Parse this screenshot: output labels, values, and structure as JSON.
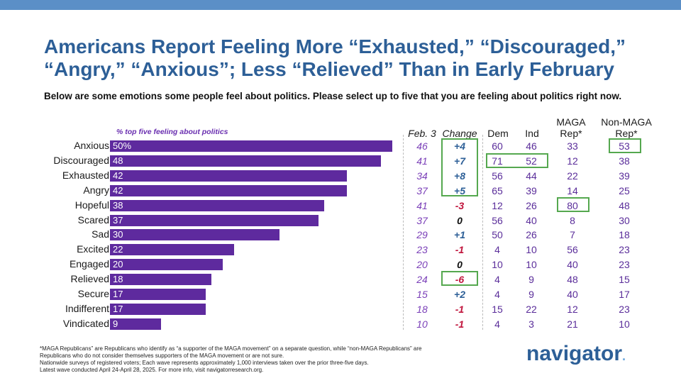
{
  "colors": {
    "top_bar": "#5b8fc7",
    "title": "#2d5f97",
    "bar": "#5e2a9e",
    "feb": "#7a3fb8",
    "change_pos": "#2d5f97",
    "change_neg": "#c0143c",
    "change_zero": "#111111",
    "highlight": "#55a84f"
  },
  "title_line1": "Americans Report Feeling More “Exhausted,” “Discouraged,”",
  "title_line2": "“Angry,” “Anxious”; Less “Relieved” Than in Early February",
  "subtitle": "Below are some emotions some people feel about politics. Please select up to five that you are feeling about politics right now.",
  "columns": {
    "feb": "Feb. 3",
    "change": "Change",
    "dem": "Dem",
    "ind": "Ind",
    "maga_1": "MAGA",
    "maga_2": "Rep*",
    "non_1": "Non-MAGA",
    "non_2": "Rep*"
  },
  "chart_data": {
    "type": "bar",
    "orientation": "horizontal",
    "title": "% top five feeling about politics",
    "categories": [
      "Anxious",
      "Discouraged",
      "Exhausted",
      "Angry",
      "Hopeful",
      "Scared",
      "Sad",
      "Excited",
      "Engaged",
      "Relieved",
      "Secure",
      "Indifferent",
      "Vindicated"
    ],
    "values": [
      50,
      48,
      42,
      42,
      38,
      37,
      30,
      22,
      20,
      18,
      17,
      17,
      9
    ],
    "value_labels": [
      "50%",
      "48",
      "42",
      "42",
      "38",
      "37",
      "30",
      "22",
      "20",
      "18",
      "17",
      "17",
      "9"
    ],
    "xlim": [
      0,
      55
    ],
    "grid": false
  },
  "table": {
    "feb": [
      "46",
      "41",
      "34",
      "37",
      "41",
      "37",
      "29",
      "23",
      "20",
      "24",
      "15",
      "18",
      "10"
    ],
    "change": [
      "+4",
      "+7",
      "+8",
      "+5",
      "-3",
      "0",
      "+1",
      "-1",
      "0",
      "-6",
      "+2",
      "-1",
      "-1"
    ],
    "dem": [
      "60",
      "71",
      "56",
      "65",
      "12",
      "56",
      "50",
      "4",
      "10",
      "4",
      "4",
      "15",
      "4"
    ],
    "ind": [
      "46",
      "52",
      "44",
      "39",
      "26",
      "40",
      "26",
      "10",
      "10",
      "9",
      "9",
      "22",
      "3"
    ],
    "maga": [
      "33",
      "12",
      "22",
      "14",
      "80",
      "8",
      "7",
      "56",
      "40",
      "48",
      "40",
      "12",
      "21"
    ],
    "non_maga": [
      "53",
      "38",
      "39",
      "25",
      "48",
      "30",
      "18",
      "23",
      "23",
      "15",
      "17",
      "23",
      "10"
    ]
  },
  "footnote": {
    "line1": "*MAGA Republicans” are Republicans who identify as “a supporter of the MAGA movement” on a separate question, while “non-MAGA Republicans” are Republicans who do not consider themselves supporters of the MAGA movement or are not sure.",
    "line2": "Nationwide surveys of registered voters; Each wave represents approximately 1,000 interviews taken over the prior three-five days.",
    "line3": "Latest wave conducted April 24-April 28, 2025. For more info, visit navigatorresearch.org."
  },
  "logo": {
    "text": "navigator",
    "dot": "."
  }
}
